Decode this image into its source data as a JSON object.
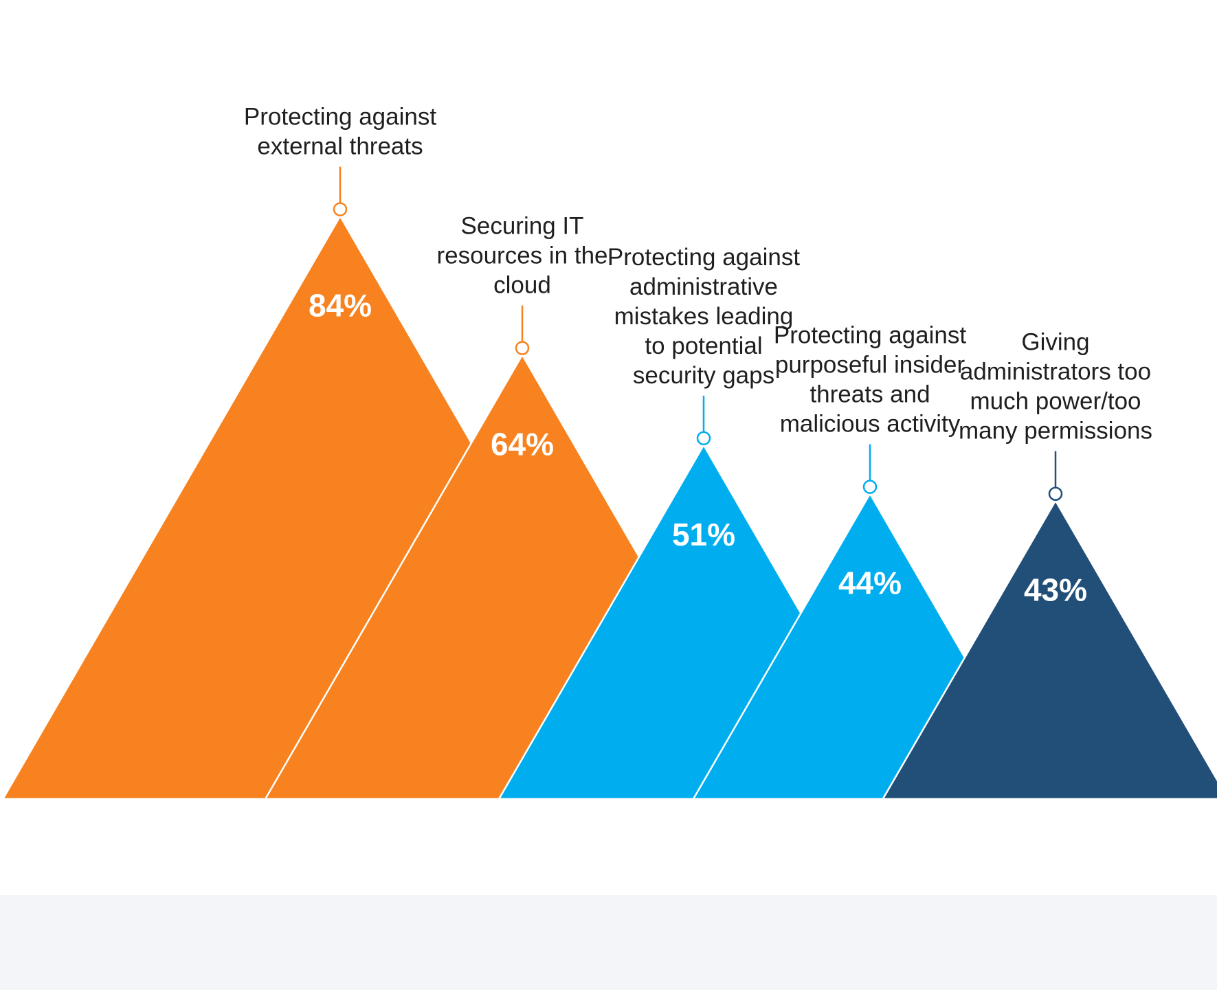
{
  "chart_data": {
    "type": "bar",
    "title": "",
    "xlabel": "",
    "ylabel": "",
    "ylim": [
      0,
      100
    ],
    "grid": false,
    "legend": "none",
    "categories": [
      "Protecting against external threats",
      "Securing IT resources in the cloud",
      "Protecting against administrative mistakes leading to potential security gaps",
      "Protecting against purposeful insider threats and malicious activity",
      "Giving administrators too much power/too many permissions"
    ],
    "label_lines": [
      [
        "Protecting against",
        "external threats"
      ],
      [
        "Securing IT",
        "resources in the",
        "cloud"
      ],
      [
        "Protecting against",
        "administrative",
        "mistakes leading",
        "to potential",
        "security gaps"
      ],
      [
        "Protecting against",
        "purposeful insider",
        "threats and",
        "malicious activity"
      ],
      [
        "Giving",
        "administrators too",
        "much power/too",
        "many permissions"
      ]
    ],
    "values": [
      84,
      64,
      51,
      44,
      43
    ],
    "value_labels": [
      "84%",
      "64%",
      "51%",
      "44%",
      "43%"
    ],
    "colors": [
      "#f7821f",
      "#f7821f",
      "#00aeef",
      "#00aeef",
      "#214f78"
    ]
  },
  "colors": {
    "background": "#ffffff",
    "footer_band": "#f4f5f8",
    "label_text": "#1f1f1f",
    "value_text": "#ffffff"
  }
}
